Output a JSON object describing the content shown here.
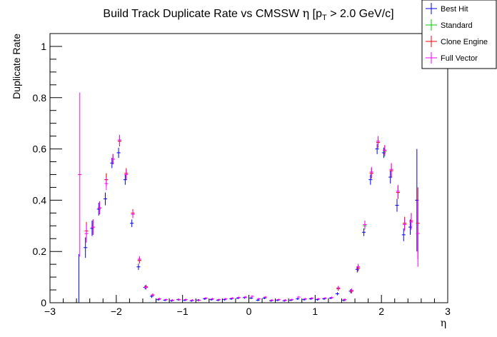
{
  "chart_data": {
    "type": "scatter",
    "title": {
      "pre": "Build Track Duplicate Rate vs CMSSW ",
      "eta": "η",
      "mid": " [p",
      "sub": "T",
      "post": " > 2.0 GeV/c]"
    },
    "xlabel": "η",
    "ylabel": "Duplicate Rate",
    "xlim": [
      -3.0,
      3.0
    ],
    "ylim": [
      0,
      1.05
    ],
    "xticks": [
      -3,
      -2,
      -1,
      0,
      1,
      2,
      3
    ],
    "yticks": [
      0,
      0.2,
      0.4,
      0.6,
      0.8,
      1
    ],
    "ytick_labels": [
      "0",
      "0.2",
      "0.4",
      "0.6",
      "0.8",
      "1"
    ],
    "legend_position": "top-right",
    "bin_width": 0.1,
    "series": [
      {
        "name": "Best Hit",
        "color": "#0000ff",
        "offset": -0.015,
        "points": [
          [
            -2.55,
            0.0,
            0.19
          ],
          [
            -2.45,
            0.215,
            0.04
          ],
          [
            -2.35,
            0.29,
            0.03
          ],
          [
            -2.25,
            0.365,
            0.025
          ],
          [
            -2.15,
            0.405,
            0.025
          ],
          [
            -2.05,
            0.545,
            0.02
          ],
          [
            -1.95,
            0.585,
            0.02
          ],
          [
            -1.85,
            0.48,
            0.02
          ],
          [
            -1.75,
            0.31,
            0.015
          ],
          [
            -1.65,
            0.14,
            0.012
          ],
          [
            -1.55,
            0.06,
            0.008
          ],
          [
            -1.45,
            0.025,
            0.006
          ],
          [
            -1.35,
            0.012,
            0.004
          ],
          [
            -1.25,
            0.01,
            0.004
          ],
          [
            -1.15,
            0.008,
            0.004
          ],
          [
            -1.05,
            0.012,
            0.004
          ],
          [
            -0.95,
            0.01,
            0.004
          ],
          [
            -0.85,
            0.008,
            0.004
          ],
          [
            -0.75,
            0.01,
            0.004
          ],
          [
            -0.65,
            0.015,
            0.004
          ],
          [
            -0.55,
            0.012,
            0.004
          ],
          [
            -0.45,
            0.01,
            0.004
          ],
          [
            -0.35,
            0.012,
            0.004
          ],
          [
            -0.25,
            0.015,
            0.004
          ],
          [
            -0.15,
            0.018,
            0.004
          ],
          [
            -0.05,
            0.02,
            0.004
          ],
          [
            0.05,
            0.018,
            0.004
          ],
          [
            0.15,
            0.01,
            0.004
          ],
          [
            0.25,
            0.018,
            0.004
          ],
          [
            0.35,
            0.008,
            0.004
          ],
          [
            0.45,
            0.01,
            0.004
          ],
          [
            0.55,
            0.008,
            0.004
          ],
          [
            0.65,
            0.01,
            0.004
          ],
          [
            0.75,
            0.015,
            0.004
          ],
          [
            0.85,
            0.012,
            0.004
          ],
          [
            0.95,
            0.015,
            0.004
          ],
          [
            1.05,
            0.012,
            0.004
          ],
          [
            1.15,
            0.015,
            0.004
          ],
          [
            1.25,
            0.018,
            0.004
          ],
          [
            1.35,
            0.035,
            0.006
          ],
          [
            1.45,
            0.01,
            0.005
          ],
          [
            1.55,
            0.045,
            0.008
          ],
          [
            1.65,
            0.13,
            0.012
          ],
          [
            1.75,
            0.275,
            0.015
          ],
          [
            1.85,
            0.48,
            0.02
          ],
          [
            1.95,
            0.6,
            0.02
          ],
          [
            2.05,
            0.585,
            0.02
          ],
          [
            2.15,
            0.49,
            0.025
          ],
          [
            2.25,
            0.38,
            0.025
          ],
          [
            2.35,
            0.265,
            0.025
          ],
          [
            2.45,
            0.295,
            0.03
          ],
          [
            2.55,
            0.4,
            0.2
          ]
        ]
      },
      {
        "name": "Standard",
        "color": "#00c800",
        "offset": 0.0,
        "points": [
          [
            -2.45,
            0.27,
            0.035
          ],
          [
            -2.35,
            0.295,
            0.03
          ],
          [
            -2.25,
            0.37,
            0.025
          ],
          [
            -2.15,
            0.48,
            0.025
          ],
          [
            -2.05,
            0.56,
            0.02
          ],
          [
            -1.95,
            0.63,
            0.02
          ],
          [
            -1.85,
            0.5,
            0.02
          ],
          [
            -1.75,
            0.345,
            0.015
          ],
          [
            -1.65,
            0.165,
            0.012
          ],
          [
            -1.55,
            0.06,
            0.008
          ],
          [
            -1.45,
            0.03,
            0.006
          ],
          [
            -1.35,
            0.015,
            0.004
          ],
          [
            1.35,
            0.055,
            0.008
          ],
          [
            1.55,
            0.045,
            0.008
          ],
          [
            1.65,
            0.135,
            0.012
          ],
          [
            1.75,
            0.3,
            0.015
          ],
          [
            1.85,
            0.505,
            0.02
          ],
          [
            1.95,
            0.625,
            0.02
          ],
          [
            2.05,
            0.59,
            0.02
          ],
          [
            2.15,
            0.515,
            0.025
          ],
          [
            2.25,
            0.43,
            0.025
          ],
          [
            2.35,
            0.31,
            0.025
          ],
          [
            2.45,
            0.315,
            0.03
          ]
        ]
      },
      {
        "name": "Clone Engine",
        "color": "#ff0000",
        "offset": 0.0,
        "points": [
          [
            -2.45,
            0.28,
            0.035
          ],
          [
            -2.35,
            0.295,
            0.03
          ],
          [
            -2.25,
            0.37,
            0.025
          ],
          [
            -2.15,
            0.48,
            0.025
          ],
          [
            -2.05,
            0.56,
            0.02
          ],
          [
            -1.95,
            0.63,
            0.02
          ],
          [
            -1.85,
            0.505,
            0.02
          ],
          [
            -1.75,
            0.35,
            0.015
          ],
          [
            -1.65,
            0.165,
            0.012
          ],
          [
            -1.55,
            0.062,
            0.008
          ],
          [
            -1.45,
            0.03,
            0.006
          ],
          [
            -1.35,
            0.015,
            0.004
          ],
          [
            1.35,
            0.055,
            0.008
          ],
          [
            1.55,
            0.045,
            0.008
          ],
          [
            1.65,
            0.135,
            0.012
          ],
          [
            1.75,
            0.305,
            0.015
          ],
          [
            1.85,
            0.505,
            0.02
          ],
          [
            1.95,
            0.625,
            0.02
          ],
          [
            2.05,
            0.595,
            0.02
          ],
          [
            2.15,
            0.515,
            0.025
          ],
          [
            2.25,
            0.43,
            0.025
          ],
          [
            2.35,
            0.31,
            0.025
          ],
          [
            2.45,
            0.32,
            0.03
          ],
          [
            2.55,
            0.31,
            0.14
          ]
        ]
      },
      {
        "name": "Full Vector",
        "color": "#ff00ff",
        "offset": 0.0,
        "points": [
          [
            -2.55,
            0.5,
            0.32
          ],
          [
            -2.45,
            0.27,
            0.035
          ],
          [
            -2.35,
            0.295,
            0.03
          ],
          [
            -2.25,
            0.37,
            0.025
          ],
          [
            -2.15,
            0.465,
            0.025
          ],
          [
            -2.05,
            0.56,
            0.02
          ],
          [
            -1.95,
            0.635,
            0.02
          ],
          [
            -1.85,
            0.5,
            0.02
          ],
          [
            -1.75,
            0.345,
            0.015
          ],
          [
            -1.65,
            0.17,
            0.012
          ],
          [
            -1.55,
            0.06,
            0.008
          ],
          [
            -1.45,
            0.03,
            0.006
          ],
          [
            -1.35,
            0.015,
            0.004
          ],
          [
            -1.25,
            0.012,
            0.004
          ],
          [
            -1.15,
            0.01,
            0.004
          ],
          [
            -1.05,
            0.012,
            0.004
          ],
          [
            -0.95,
            0.012,
            0.004
          ],
          [
            -0.85,
            0.01,
            0.004
          ],
          [
            -0.75,
            0.01,
            0.004
          ],
          [
            -0.65,
            0.018,
            0.004
          ],
          [
            -0.55,
            0.015,
            0.004
          ],
          [
            -0.45,
            0.012,
            0.004
          ],
          [
            -0.35,
            0.015,
            0.004
          ],
          [
            -0.25,
            0.018,
            0.004
          ],
          [
            -0.15,
            0.02,
            0.004
          ],
          [
            -0.05,
            0.022,
            0.004
          ],
          [
            0.05,
            0.025,
            0.004
          ],
          [
            0.15,
            0.015,
            0.004
          ],
          [
            0.25,
            0.022,
            0.004
          ],
          [
            0.35,
            0.01,
            0.004
          ],
          [
            0.45,
            0.012,
            0.004
          ],
          [
            0.55,
            0.01,
            0.004
          ],
          [
            0.65,
            0.012,
            0.004
          ],
          [
            0.75,
            0.022,
            0.004
          ],
          [
            0.85,
            0.015,
            0.004
          ],
          [
            0.95,
            0.018,
            0.004
          ],
          [
            1.05,
            0.015,
            0.004
          ],
          [
            1.15,
            0.018,
            0.004
          ],
          [
            1.25,
            0.02,
            0.004
          ],
          [
            1.35,
            0.058,
            0.008
          ],
          [
            1.45,
            0.012,
            0.005
          ],
          [
            1.55,
            0.048,
            0.008
          ],
          [
            1.65,
            0.14,
            0.012
          ],
          [
            1.75,
            0.305,
            0.015
          ],
          [
            1.85,
            0.51,
            0.02
          ],
          [
            1.95,
            0.63,
            0.02
          ],
          [
            2.05,
            0.595,
            0.02
          ],
          [
            2.15,
            0.52,
            0.025
          ],
          [
            2.25,
            0.435,
            0.025
          ],
          [
            2.35,
            0.305,
            0.025
          ],
          [
            2.45,
            0.315,
            0.03
          ],
          [
            2.55,
            0.27,
            0.13
          ]
        ]
      }
    ]
  }
}
